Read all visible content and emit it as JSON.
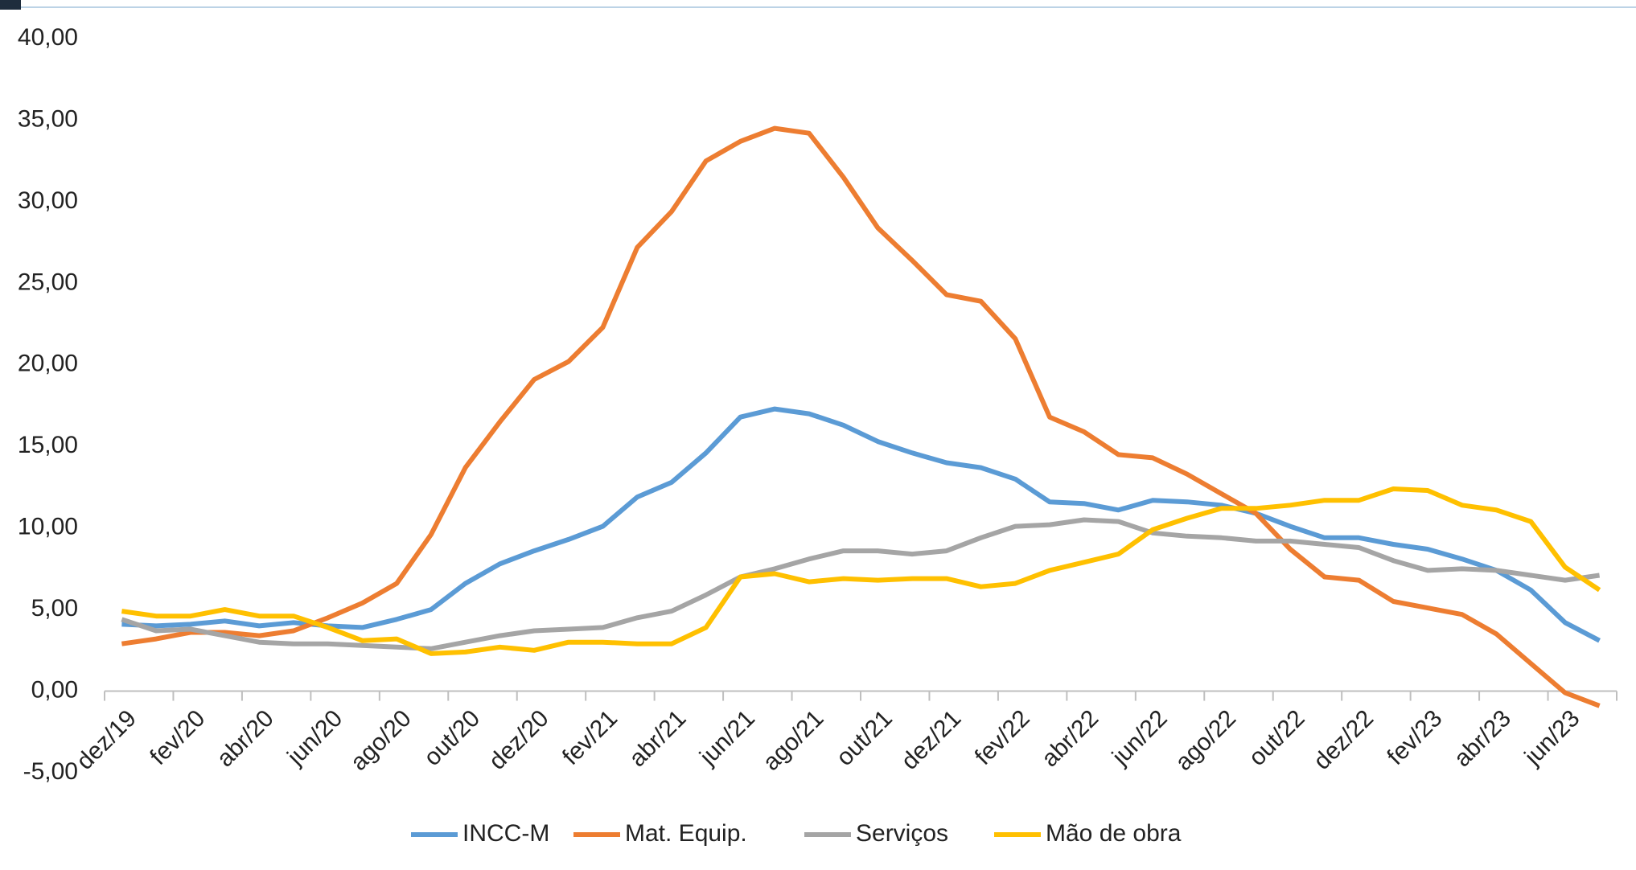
{
  "chart_data": {
    "type": "line",
    "categories": [
      "dez/19",
      null,
      "fev/20",
      null,
      "abr/20",
      null,
      "jun/20",
      null,
      "ago/20",
      null,
      "out/20",
      null,
      "dez/20",
      null,
      "fev/21",
      null,
      "abr/21",
      null,
      "jun/21",
      null,
      "ago/21",
      null,
      "out/21",
      null,
      "dez/21",
      null,
      "fev/22",
      null,
      "abr/22",
      null,
      "jun/22",
      null,
      "ago/22",
      null,
      "out/22",
      null,
      "dez/22",
      null,
      "fev/23",
      null,
      "abr/23",
      null,
      "jun/23",
      null
    ],
    "series": [
      {
        "name": "INCC-M",
        "color": "#5b9bd5",
        "values": [
          4.1,
          4.0,
          4.1,
          4.3,
          4.0,
          4.2,
          4.0,
          3.9,
          4.4,
          5.0,
          6.6,
          7.8,
          8.6,
          9.3,
          10.1,
          11.9,
          12.8,
          14.6,
          16.8,
          17.3,
          17.0,
          16.3,
          15.3,
          14.6,
          14.0,
          13.7,
          13.0,
          11.6,
          11.5,
          11.1,
          11.7,
          11.6,
          11.4,
          10.9,
          10.1,
          9.4,
          9.4,
          9.0,
          8.7,
          8.1,
          7.4,
          6.2,
          4.2,
          3.1
        ]
      },
      {
        "name": "Mat. Equip.",
        "color": "#ed7d31",
        "values": [
          2.9,
          3.2,
          3.6,
          3.6,
          3.4,
          3.7,
          4.5,
          5.4,
          6.6,
          9.6,
          13.7,
          16.5,
          19.1,
          20.2,
          22.3,
          27.2,
          29.4,
          32.5,
          33.7,
          34.5,
          34.2,
          31.5,
          28.4,
          26.4,
          24.3,
          23.9,
          21.6,
          16.8,
          15.9,
          14.5,
          14.3,
          13.3,
          12.1,
          10.9,
          8.7,
          7.0,
          6.8,
          5.5,
          5.1,
          4.7,
          3.5,
          1.7,
          -0.1,
          -0.9
        ]
      },
      {
        "name": "Serviços",
        "color": "#a5a5a5",
        "values": [
          4.4,
          3.7,
          3.8,
          3.4,
          3.0,
          2.9,
          2.9,
          2.8,
          2.7,
          2.6,
          3.0,
          3.4,
          3.7,
          3.8,
          3.9,
          4.5,
          4.9,
          5.9,
          7.0,
          7.5,
          8.1,
          8.6,
          8.6,
          8.4,
          8.6,
          9.4,
          10.1,
          10.2,
          10.5,
          10.4,
          9.7,
          9.5,
          9.4,
          9.2,
          9.2,
          9.0,
          8.8,
          8.0,
          7.4,
          7.5,
          7.4,
          7.1,
          6.8,
          7.1
        ]
      },
      {
        "name": "Mão de obra",
        "color": "#ffc000",
        "values": [
          4.9,
          4.6,
          4.6,
          5.0,
          4.6,
          4.6,
          3.9,
          3.1,
          3.2,
          2.3,
          2.4,
          2.7,
          2.5,
          3.0,
          3.0,
          2.9,
          2.9,
          3.9,
          7.0,
          7.2,
          6.7,
          6.9,
          6.8,
          6.9,
          6.9,
          6.4,
          6.6,
          7.4,
          7.9,
          8.4,
          9.9,
          10.6,
          11.2,
          11.2,
          11.4,
          11.7,
          11.7,
          12.4,
          12.3,
          11.4,
          11.1,
          10.4,
          7.6,
          6.2
        ]
      }
    ],
    "ylim": [
      -5,
      40
    ],
    "yticks": [
      {
        "value": -5,
        "label": "-5,00"
      },
      {
        "value": 0,
        "label": "0,00"
      },
      {
        "value": 5,
        "label": "5,00"
      },
      {
        "value": 10,
        "label": "10,00"
      },
      {
        "value": 15,
        "label": "15,00"
      },
      {
        "value": 20,
        "label": "20,00"
      },
      {
        "value": 25,
        "label": "25,00"
      },
      {
        "value": 30,
        "label": "30,00"
      },
      {
        "value": 35,
        "label": "35,00"
      },
      {
        "value": 40,
        "label": "40,00"
      }
    ],
    "grid": false,
    "legend": "bottom"
  }
}
